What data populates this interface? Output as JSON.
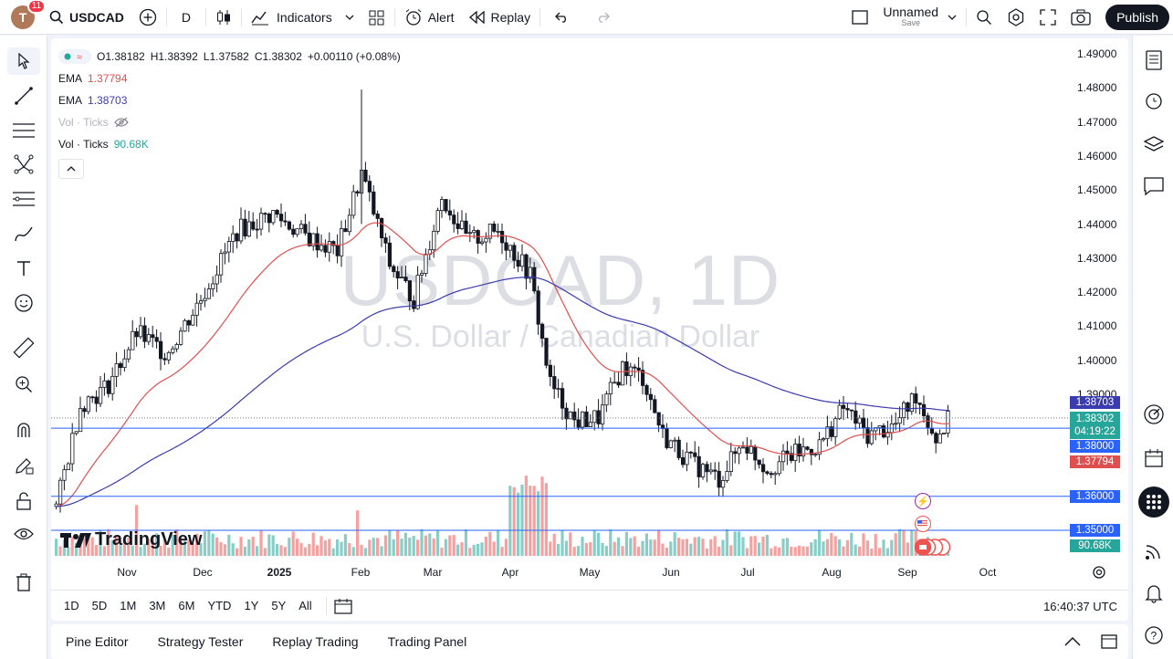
{
  "topbar": {
    "avatar_letter": "T",
    "notification_count": "11",
    "symbol": "USDCAD",
    "interval": "D",
    "indicators_label": "Indicators",
    "alert_label": "Alert",
    "replay_label": "Replay",
    "layout_name": "Unnamed",
    "layout_sub": "Save",
    "publish_label": "Publish"
  },
  "legend": {
    "ohlc": {
      "o": "O1.38182",
      "h": "H1.38392",
      "l": "L1.37582",
      "c": "C1.38302",
      "chg": "+0.00110 (+0.08%)"
    },
    "ema1": {
      "name": "EMA",
      "value": "1.37794",
      "color": "#e04f4f"
    },
    "ema2": {
      "name": "EMA",
      "value": "1.38703",
      "color": "#3b3bb0"
    },
    "vol_hidden": {
      "name": "Vol · Ticks"
    },
    "vol": {
      "name": "Vol · Ticks",
      "value": "90.68K",
      "color": "#26a69a"
    }
  },
  "watermark": {
    "title": "USDCAD, 1D",
    "subtitle": "U.S. Dollar / Canadian Dollar"
  },
  "price_axis": {
    "ticks": [
      "1.49000",
      "1.48000",
      "1.47000",
      "1.46000",
      "1.45000",
      "1.44000",
      "1.43000",
      "1.42000",
      "1.41000",
      "1.40000",
      "1.39000",
      "1.38000",
      "1.37000",
      "1.36000",
      "1.35000"
    ],
    "tags": {
      "ema2": "1.38703",
      "last": "1.38302",
      "countdown": "04:19:22",
      "line1": "1.38000",
      "ema1": "1.37794",
      "line2": "1.36000",
      "line3": "1.35000",
      "volume": "90.68K"
    }
  },
  "time_axis": [
    "Nov",
    "Dec",
    "2025",
    "Feb",
    "Mar",
    "Apr",
    "May",
    "Jun",
    "Jul",
    "Aug",
    "Sep",
    "Oct"
  ],
  "range_buttons": [
    "1D",
    "5D",
    "1M",
    "3M",
    "6M",
    "YTD",
    "1Y",
    "5Y",
    "All"
  ],
  "clock": "16:40:37 UTC",
  "bottom_tabs": [
    "Pine Editor",
    "Strategy Tester",
    "Replay Trading",
    "Trading Panel"
  ],
  "logo_text": "TradingView",
  "colors": {
    "up": "#26a69a",
    "down": "#ef5350",
    "accent": "#2962ff",
    "ema1": "#e04f4f",
    "ema2": "#3b3bb0"
  },
  "chart_data": {
    "type": "candlestick",
    "title": "USDCAD, 1D",
    "ylim": [
      1.35,
      1.49
    ],
    "x_categories": [
      "Oct",
      "Nov",
      "Dec",
      "Jan",
      "Feb",
      "Mar",
      "Apr",
      "May",
      "Jun",
      "Jul",
      "Aug",
      "Sep"
    ],
    "horizontal_lines": [
      1.38,
      1.36,
      1.35
    ],
    "series": [
      {
        "name": "USDCAD close (approx monthly path)",
        "values": [
          1.365,
          1.395,
          1.41,
          1.44,
          1.445,
          1.43,
          1.42,
          1.39,
          1.375,
          1.365,
          1.38,
          1.383
        ]
      },
      {
        "name": "EMA",
        "last": 1.37794
      },
      {
        "name": "EMA",
        "last": 1.38703
      }
    ],
    "volume_last": "90.68K"
  }
}
